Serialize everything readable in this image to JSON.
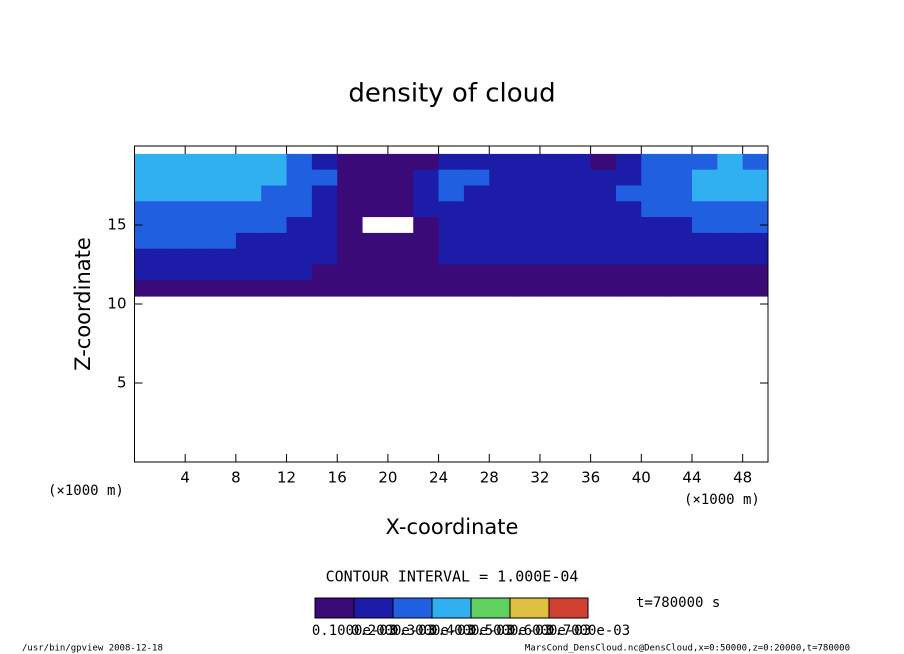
{
  "chart_data": {
    "type": "contour",
    "title": "density of cloud",
    "x_label": "X-coordinate",
    "y_label": "Z-coordinate",
    "x_unit": "(×1000 m)",
    "y_unit": "(×1000 m)",
    "xlim": [
      0,
      50
    ],
    "ylim": [
      0,
      20
    ],
    "xticks": [
      4,
      8,
      12,
      16,
      20,
      24,
      28,
      32,
      36,
      40,
      44,
      48
    ],
    "yticks": [
      5,
      10,
      15
    ],
    "x": [
      1,
      3,
      5,
      7,
      9,
      11,
      13,
      15,
      17,
      19,
      21,
      23,
      25,
      27,
      29,
      31,
      33,
      35,
      37,
      39,
      41,
      43,
      45,
      47,
      49
    ],
    "z": [
      19,
      18,
      17,
      16,
      15,
      14,
      13,
      12,
      11
    ],
    "values": [
      [
        0.0004,
        0.0004,
        0.0004,
        0.0004,
        0.0004,
        0.0004,
        0.0003,
        0.0002,
        0.0001,
        0.0001,
        0.0001,
        0.0001,
        0.0002,
        0.0002,
        0.0002,
        0.0002,
        0.0002,
        0.0002,
        0.0001,
        0.0002,
        0.0003,
        0.0003,
        0.0003,
        0.0004,
        0.0003
      ],
      [
        0.0004,
        0.0004,
        0.0004,
        0.0004,
        0.0004,
        0.0004,
        0.0003,
        0.0003,
        0.0001,
        0.0001,
        0.0001,
        0.0002,
        0.0003,
        0.0003,
        0.0002,
        0.0002,
        0.0002,
        0.0002,
        0.0002,
        0.0002,
        0.0003,
        0.0003,
        0.0004,
        0.0004,
        0.0004
      ],
      [
        0.0004,
        0.0004,
        0.0004,
        0.0004,
        0.0004,
        0.0003,
        0.0003,
        0.0002,
        0.0001,
        0.0001,
        0.0001,
        0.0002,
        0.0003,
        0.0002,
        0.0002,
        0.0002,
        0.0002,
        0.0002,
        0.0002,
        0.0003,
        0.0003,
        0.0003,
        0.0004,
        0.0004,
        0.0004
      ],
      [
        0.0003,
        0.0003,
        0.0003,
        0.0003,
        0.0003,
        0.0003,
        0.0003,
        0.0002,
        0.0001,
        0.0001,
        0.0001,
        0.0002,
        0.0002,
        0.0002,
        0.0002,
        0.0002,
        0.0002,
        0.0002,
        0.0002,
        0.0002,
        0.0003,
        0.0003,
        0.0003,
        0.0003,
        0.0003
      ],
      [
        0.0003,
        0.0003,
        0.0003,
        0.0003,
        0.0003,
        0.0003,
        0.0002,
        0.0002,
        0.0001,
        0,
        0,
        0.0001,
        0.0002,
        0.0002,
        0.0002,
        0.0002,
        0.0002,
        0.0002,
        0.0002,
        0.0002,
        0.0002,
        0.0002,
        0.0003,
        0.0003,
        0.0003
      ],
      [
        0.0003,
        0.0003,
        0.0003,
        0.0003,
        0.0002,
        0.0002,
        0.0002,
        0.0002,
        0.0001,
        0.0001,
        0.0001,
        0.0001,
        0.0002,
        0.0002,
        0.0002,
        0.0002,
        0.0002,
        0.0002,
        0.0002,
        0.0002,
        0.0002,
        0.0002,
        0.0002,
        0.0002,
        0.0002
      ],
      [
        0.0002,
        0.0002,
        0.0002,
        0.0002,
        0.0002,
        0.0002,
        0.0002,
        0.0002,
        0.0001,
        0.0001,
        0.0001,
        0.0001,
        0.0002,
        0.0002,
        0.0002,
        0.0002,
        0.0002,
        0.0002,
        0.0002,
        0.0002,
        0.0002,
        0.0002,
        0.0002,
        0.0002,
        0.0002
      ],
      [
        0.0002,
        0.0002,
        0.0002,
        0.0002,
        0.0002,
        0.0002,
        0.0002,
        0.0001,
        0.0001,
        0.0001,
        0.0001,
        5e-05,
        0.0001,
        0.0001,
        0.0001,
        0.0001,
        0.0001,
        0.0001,
        0.0001,
        0.0001,
        0.0001,
        0.0001,
        0.0001,
        0.0001,
        0.0001
      ],
      [
        5e-05,
        5e-05,
        5e-05,
        5e-05,
        5e-05,
        5e-05,
        5e-05,
        5e-05,
        5e-05,
        5e-05,
        5e-05,
        5e-05,
        5e-05,
        5e-05,
        5e-05,
        5e-05,
        5e-05,
        5e-05,
        5e-05,
        5e-05,
        5e-05,
        5e-05,
        5e-05,
        5e-05,
        5e-05
      ]
    ],
    "colorbar": {
      "lim": [
        0,
        0.0007
      ],
      "colors": [
        "#3a0a78",
        "#1c1ca8",
        "#2060e0",
        "#30b0f0",
        "#60d060",
        "#e0c040",
        "#d04030"
      ],
      "ticks": [
        {
          "value": 0.0001,
          "label": "0.1000e-03"
        },
        {
          "value": 0.0002,
          "label": "0.2000e-03"
        },
        {
          "value": 0.0003,
          "label": "0.3000e-03"
        },
        {
          "value": 0.0004,
          "label": "0.4000e-03"
        },
        {
          "value": 0.0005,
          "label": "0.5000e-03"
        },
        {
          "value": 0.0006,
          "label": "0.6000e-03"
        },
        {
          "value": 0.0007,
          "label": "0.7000e-03"
        }
      ]
    },
    "contour_interval": "CONTOUR INTERVAL = 1.000E-04",
    "time_label": "t=780000 s",
    "footer_left": "/usr/bin/gpview  2008-12-18",
    "footer_right": "MarsCond_DensCloud.nc@DensCloud,x=0:50000,z=0:20000,t=780000"
  }
}
